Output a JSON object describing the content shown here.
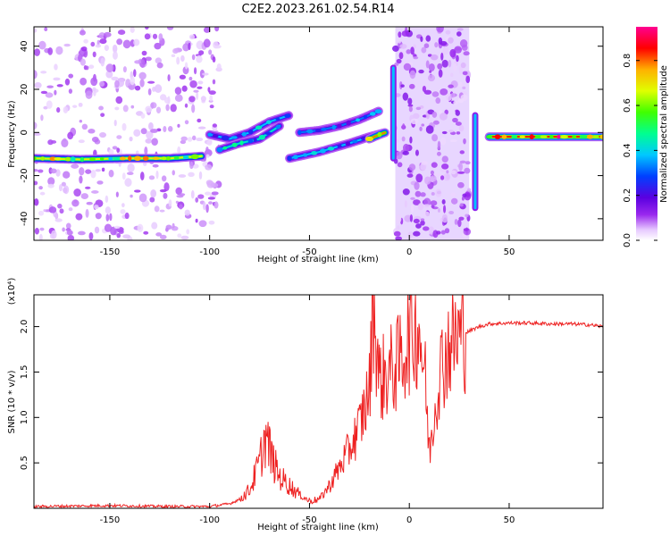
{
  "title": "C2E2.2023.261.02.54.R14",
  "chart_data": [
    {
      "type": "heatmap",
      "xlabel": "Height of straight line (km)",
      "ylabel": "Frequency (Hz)",
      "xlim": [
        -188,
        97
      ],
      "ylim": [
        -50,
        49
      ],
      "xticks": [
        -150,
        -100,
        -50,
        0,
        50
      ],
      "yticks": [
        -40,
        -20,
        0,
        20,
        40
      ],
      "colorbar": {
        "label": "Normalized spectral amplitude",
        "range": [
          0.0,
          0.95
        ],
        "ticks": [
          0.0,
          0.2,
          0.4,
          0.6,
          0.8
        ],
        "colormap": [
          "#ffffff",
          "#e6c8ff",
          "#9a28ee",
          "#5a00e0",
          "#0040ff",
          "#00c8ff",
          "#00ff90",
          "#40ff00",
          "#e0ff00",
          "#ffb000",
          "#ff0000",
          "#ff0090"
        ]
      },
      "ridges": [
        {
          "x": [
            -188,
            -165,
            -140,
            -120,
            -104
          ],
          "freq": [
            -12,
            -12.5,
            -12,
            -12,
            -11
          ],
          "amplitude": 0.75
        },
        {
          "x": [
            -100,
            -90,
            -80,
            -70,
            -60
          ],
          "freq": [
            -1,
            -3,
            0,
            5,
            8
          ],
          "amplitude": 0.45
        },
        {
          "x": [
            -95,
            -85,
            -75,
            -65
          ],
          "freq": [
            -8,
            -5,
            -3,
            3
          ],
          "amplitude": 0.5
        },
        {
          "x": [
            -55,
            -45,
            -35,
            -25,
            -15
          ],
          "freq": [
            0,
            1,
            3,
            6,
            10
          ],
          "amplitude": 0.4
        },
        {
          "x": [
            -60,
            -45,
            -30,
            -20,
            -12
          ],
          "freq": [
            -12,
            -9,
            -5,
            -2,
            0
          ],
          "amplitude": 0.45
        },
        {
          "x": [
            -20,
            -15,
            -12
          ],
          "freq": [
            -3,
            -1,
            0
          ],
          "amplitude": 0.85
        },
        {
          "x": [
            40,
            60,
            80,
            97
          ],
          "freq": [
            -2,
            -2,
            -2,
            -2
          ],
          "amplitude": 0.9
        }
      ],
      "spikes": [
        {
          "x": -8,
          "freq": [
            -12,
            30
          ]
        },
        {
          "x": 33,
          "freq": [
            -35,
            8
          ]
        }
      ],
      "noise_bands": [
        {
          "x": [
            -7,
            30
          ],
          "freq": [
            -50,
            49
          ]
        },
        {
          "x": [
            -188,
            -95
          ],
          "freq": [
            -50,
            49
          ]
        }
      ]
    },
    {
      "type": "line",
      "xlabel": "Height of straight line (km)",
      "ylabel": "SNR (10 * v/v)",
      "y_multiplier_label": "(x10⁴)",
      "xlim": [
        -188,
        97
      ],
      "ylim": [
        0.0,
        2.35
      ],
      "xticks": [
        -150,
        -100,
        -50,
        0,
        50
      ],
      "yticks": [
        0.5,
        1.0,
        1.5,
        2.0
      ],
      "line_color": "#ee2222",
      "x": [
        -188,
        -150,
        -120,
        -100,
        -90,
        -85,
        -80,
        -75,
        -72,
        -68,
        -65,
        -60,
        -55,
        -50,
        -45,
        -40,
        -35,
        -30,
        -25,
        -20,
        -18,
        -15,
        -10,
        -5,
        0,
        5,
        8,
        10,
        15,
        20,
        25,
        30,
        35,
        40,
        50,
        60,
        70,
        80,
        90,
        97
      ],
      "y": [
        0.02,
        0.03,
        0.02,
        0.02,
        0.05,
        0.1,
        0.2,
        0.5,
        0.8,
        0.5,
        0.35,
        0.25,
        0.15,
        0.08,
        0.1,
        0.25,
        0.45,
        0.65,
        0.9,
        1.3,
        2.3,
        1.4,
        1.5,
        1.6,
        1.9,
        2.0,
        1.4,
        0.6,
        1.5,
        1.8,
        1.9,
        1.95,
        2.0,
        2.03,
        2.04,
        2.04,
        2.03,
        2.03,
        2.02,
        2.0
      ]
    }
  ]
}
